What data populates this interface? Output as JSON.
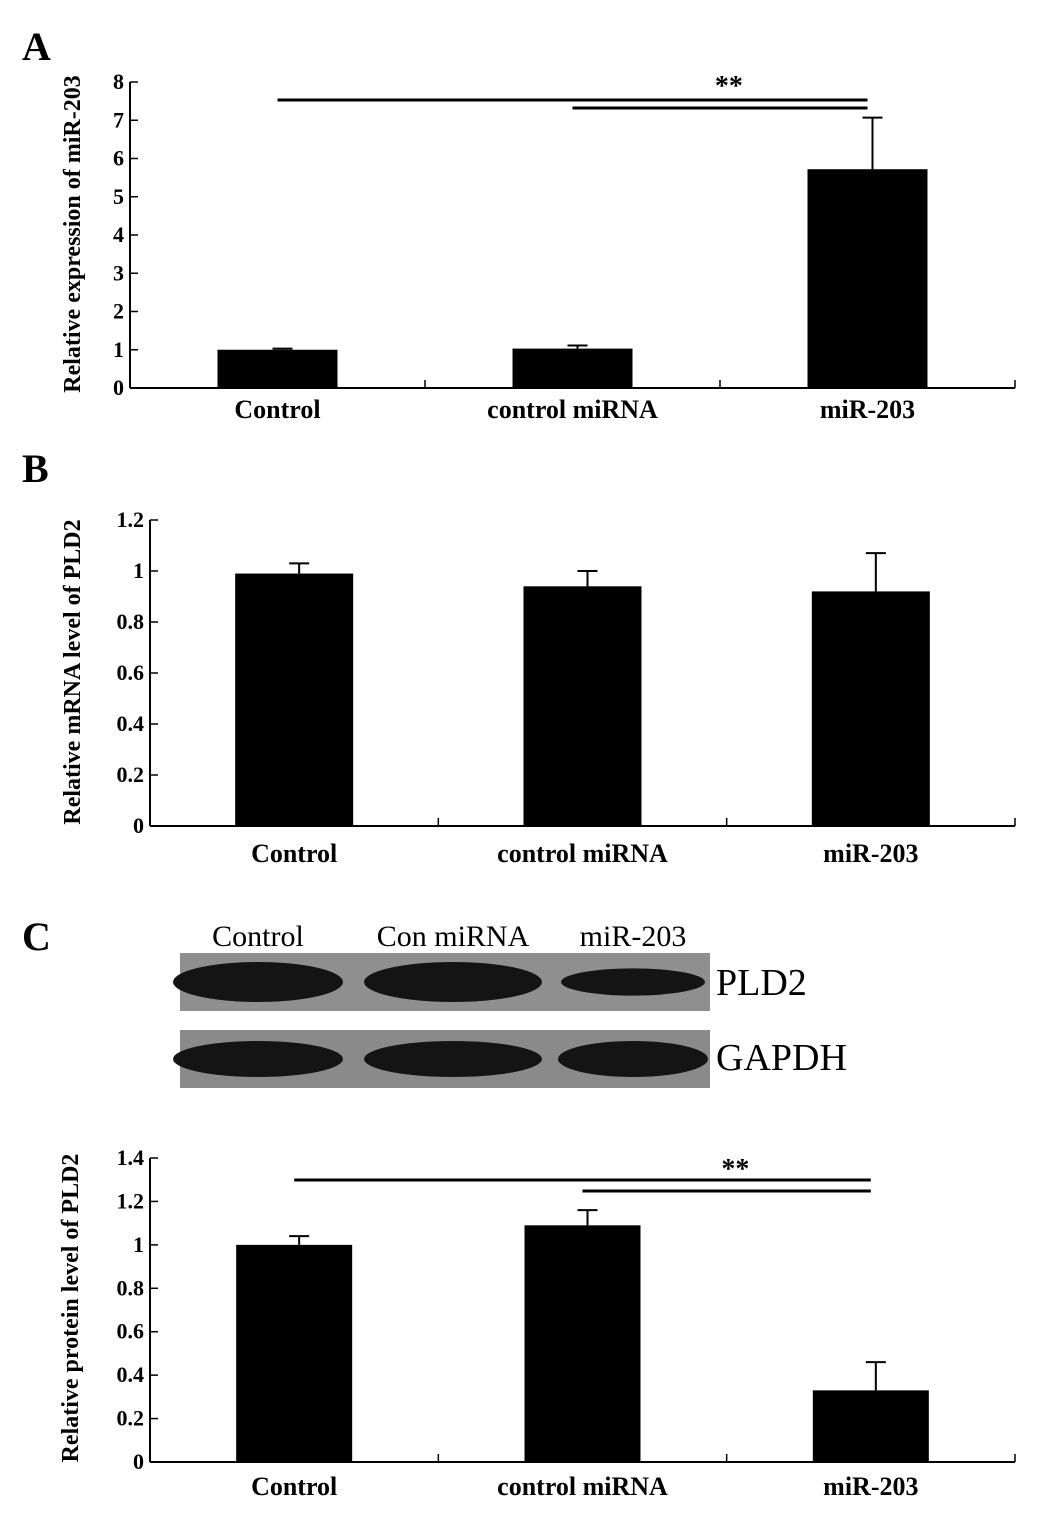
{
  "panels": {
    "A": "A",
    "B": "B",
    "C": "C"
  },
  "blot": {
    "lanes": [
      "Control",
      "Con miRNA",
      "miR-203"
    ],
    "proteins": [
      "PLD2",
      "GAPDH"
    ],
    "band_intensity": {
      "PLD2": [
        1.0,
        1.0,
        0.6
      ],
      "GAPDH": [
        1.0,
        1.0,
        1.0
      ]
    }
  },
  "chart_data": [
    {
      "panel": "A",
      "type": "bar",
      "categories": [
        "Control",
        "control miRNA",
        "miR-203"
      ],
      "values": [
        1.0,
        1.03,
        5.72
      ],
      "errors": [
        0.03,
        0.08,
        1.35
      ],
      "ylabel": "Relative expression of miR-203",
      "xlabel": "",
      "ylim": [
        0,
        8
      ],
      "yticks": [
        0,
        1,
        2,
        3,
        4,
        5,
        6,
        7,
        8
      ],
      "ytick_labels": [
        "0",
        "1",
        "2",
        "3",
        "4",
        "5",
        "6",
        "7",
        "8"
      ],
      "significance": {
        "label": "**",
        "pairs": [
          [
            0,
            2
          ],
          [
            1,
            2
          ]
        ]
      },
      "grid": false,
      "bar_color": "#000000"
    },
    {
      "panel": "B",
      "type": "bar",
      "categories": [
        "Control",
        "control miRNA",
        "miR-203"
      ],
      "values": [
        0.99,
        0.94,
        0.92
      ],
      "errors": [
        0.04,
        0.06,
        0.15
      ],
      "ylabel": "Relative mRNA level of PLD2",
      "xlabel": "",
      "ylim": [
        0,
        1.2
      ],
      "yticks": [
        0,
        0.2,
        0.4,
        0.6,
        0.8,
        1,
        1.2
      ],
      "ytick_labels": [
        "0",
        "0.2",
        "0.4",
        "0.6",
        "0.8",
        "1",
        "1.2"
      ],
      "grid": false,
      "bar_color": "#000000"
    },
    {
      "panel": "C",
      "type": "bar",
      "categories": [
        "Control",
        "control miRNA",
        "miR-203"
      ],
      "values": [
        1.0,
        1.09,
        0.33
      ],
      "errors": [
        0.04,
        0.07,
        0.13
      ],
      "ylabel": "Relative protein level of PLD2",
      "xlabel": "",
      "ylim": [
        0,
        1.4
      ],
      "yticks": [
        0,
        0.2,
        0.4,
        0.6,
        0.8,
        1,
        1.2,
        1.4
      ],
      "ytick_labels": [
        "0",
        "0.2",
        "0.4",
        "0.6",
        "0.8",
        "1",
        "1.2",
        "1.4"
      ],
      "significance": {
        "label": "**",
        "pairs": [
          [
            0,
            2
          ],
          [
            1,
            2
          ]
        ]
      },
      "grid": false,
      "bar_color": "#000000"
    }
  ]
}
